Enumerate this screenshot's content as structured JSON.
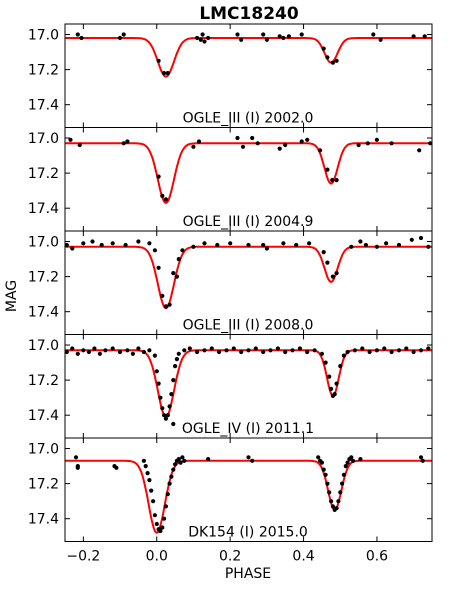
{
  "chart_data": {
    "type": "scatter",
    "title": "LMC18240",
    "xlabel": "PHASE",
    "ylabel": "MAG",
    "xlim": [
      -0.25,
      0.75
    ],
    "ylim": [
      17.53,
      16.94
    ],
    "y_inverted": true,
    "grid": false,
    "x_ticks": [
      -0.2,
      0.0,
      0.2,
      0.4,
      0.6
    ],
    "x_tick_labels": [
      "−0.2",
      "0.0",
      "0.2",
      "0.4",
      "0.6"
    ],
    "y_ticks": [
      17.0,
      17.2,
      17.4
    ],
    "y_tick_labels": [
      "17.0",
      "17.2",
      "17.4"
    ],
    "model_color": "#ff0000",
    "point_color": "#000000",
    "panels": [
      {
        "label": "OGLE_III (I) 2002.0",
        "model": {
          "base": 17.02,
          "primary": {
            "center": 0.025,
            "depth": 0.22,
            "width": 0.022
          },
          "secondary": {
            "center": 0.475,
            "depth": 0.14,
            "width": 0.018
          }
        },
        "points": [
          [
            -0.215,
            17.0
          ],
          [
            -0.205,
            17.02
          ],
          [
            -0.1,
            17.02
          ],
          [
            -0.09,
            17.0
          ],
          [
            0.005,
            17.15
          ],
          [
            0.02,
            17.22
          ],
          [
            0.03,
            17.22
          ],
          [
            0.12,
            17.03
          ],
          [
            0.11,
            17.02
          ],
          [
            0.125,
            17.0
          ],
          [
            0.13,
            17.04
          ],
          [
            0.14,
            17.02
          ],
          [
            0.22,
            17.0
          ],
          [
            0.23,
            17.03
          ],
          [
            0.29,
            17.0
          ],
          [
            0.3,
            17.03
          ],
          [
            0.335,
            17.01
          ],
          [
            0.345,
            17.02
          ],
          [
            0.36,
            17.01
          ],
          [
            0.395,
            17.0
          ],
          [
            0.455,
            17.08
          ],
          [
            0.465,
            17.13
          ],
          [
            0.48,
            17.16
          ],
          [
            0.49,
            17.15
          ],
          [
            0.59,
            17.0
          ],
          [
            0.61,
            17.03
          ],
          [
            0.7,
            17.01
          ],
          [
            0.73,
            17.01
          ]
        ]
      },
      {
        "label": "OGLE_III (I) 2004.9",
        "model": {
          "base": 17.03,
          "primary": {
            "center": 0.025,
            "depth": 0.34,
            "width": 0.022
          },
          "secondary": {
            "center": 0.475,
            "depth": 0.23,
            "width": 0.018
          }
        },
        "points": [
          [
            -0.235,
            17.01
          ],
          [
            -0.21,
            17.04
          ],
          [
            -0.09,
            17.03
          ],
          [
            -0.08,
            17.02
          ],
          [
            0.005,
            17.22
          ],
          [
            0.015,
            17.33
          ],
          [
            0.025,
            17.35
          ],
          [
            0.1,
            17.05
          ],
          [
            0.115,
            17.02
          ],
          [
            0.22,
            17.0
          ],
          [
            0.235,
            17.05
          ],
          [
            0.26,
            17.0
          ],
          [
            0.275,
            17.03
          ],
          [
            0.335,
            17.06
          ],
          [
            0.35,
            17.04
          ],
          [
            0.395,
            17.02
          ],
          [
            0.41,
            17.01
          ],
          [
            0.445,
            17.07
          ],
          [
            0.465,
            17.18
          ],
          [
            0.478,
            17.24
          ],
          [
            0.49,
            17.24
          ],
          [
            0.55,
            17.04
          ],
          [
            0.575,
            17.03
          ],
          [
            0.6,
            17.01
          ],
          [
            0.64,
            17.03
          ],
          [
            0.715,
            17.07
          ],
          [
            0.745,
            17.03
          ]
        ]
      },
      {
        "label": "OGLE_III (I) 2008.0",
        "model": {
          "base": 17.03,
          "primary": {
            "center": 0.025,
            "depth": 0.35,
            "width": 0.022
          },
          "secondary": {
            "center": 0.475,
            "depth": 0.2,
            "width": 0.018
          }
        },
        "points": [
          [
            -0.245,
            17.02
          ],
          [
            -0.23,
            17.04
          ],
          [
            -0.2,
            17.01
          ],
          [
            -0.175,
            17.0
          ],
          [
            -0.15,
            17.02
          ],
          [
            -0.12,
            17.01
          ],
          [
            -0.085,
            17.02
          ],
          [
            -0.05,
            17.0
          ],
          [
            -0.02,
            17.01
          ],
          [
            -0.005,
            17.05
          ],
          [
            0.005,
            17.15
          ],
          [
            0.015,
            17.31
          ],
          [
            0.025,
            17.37
          ],
          [
            0.035,
            17.36
          ],
          [
            0.045,
            17.18
          ],
          [
            0.055,
            17.2
          ],
          [
            0.06,
            17.1
          ],
          [
            0.07,
            17.05
          ],
          [
            0.1,
            17.03
          ],
          [
            0.13,
            17.01
          ],
          [
            0.165,
            17.02
          ],
          [
            0.2,
            17.01
          ],
          [
            0.25,
            17.02
          ],
          [
            0.29,
            17.02
          ],
          [
            0.3,
            17.04
          ],
          [
            0.345,
            17.01
          ],
          [
            0.38,
            17.02
          ],
          [
            0.415,
            17.01
          ],
          [
            0.455,
            17.06
          ],
          [
            0.465,
            17.12
          ],
          [
            0.48,
            17.2
          ],
          [
            0.49,
            17.18
          ],
          [
            0.53,
            17.03
          ],
          [
            0.555,
            17.0
          ],
          [
            0.57,
            17.02
          ],
          [
            0.6,
            17.03
          ],
          [
            0.625,
            17.01
          ],
          [
            0.66,
            17.02
          ],
          [
            0.695,
            16.99
          ],
          [
            0.72,
            16.98
          ],
          [
            0.74,
            17.03
          ]
        ]
      },
      {
        "label": "OGLE_IV (I) 2011.1",
        "model": {
          "base": 17.03,
          "primary": {
            "center": 0.025,
            "depth": 0.38,
            "width": 0.022
          },
          "secondary": {
            "center": 0.48,
            "depth": 0.26,
            "width": 0.016
          }
        },
        "points": [
          [
            -0.245,
            17.04
          ],
          [
            -0.23,
            17.02
          ],
          [
            -0.215,
            17.05
          ],
          [
            -0.2,
            17.03
          ],
          [
            -0.185,
            17.04
          ],
          [
            -0.17,
            17.02
          ],
          [
            -0.155,
            17.05
          ],
          [
            -0.14,
            17.03
          ],
          [
            -0.12,
            17.02
          ],
          [
            -0.1,
            17.04
          ],
          [
            -0.08,
            17.03
          ],
          [
            -0.065,
            17.05
          ],
          [
            -0.05,
            17.02
          ],
          [
            -0.035,
            17.04
          ],
          [
            -0.02,
            17.03
          ],
          [
            -0.005,
            17.06
          ],
          [
            0.0,
            17.15
          ],
          [
            0.005,
            17.22
          ],
          [
            0.01,
            17.3
          ],
          [
            0.015,
            17.36
          ],
          [
            0.02,
            17.4
          ],
          [
            0.025,
            17.42
          ],
          [
            0.03,
            17.4
          ],
          [
            0.035,
            17.35
          ],
          [
            0.04,
            17.28
          ],
          [
            0.045,
            17.2
          ],
          [
            0.05,
            17.12
          ],
          [
            0.055,
            17.08
          ],
          [
            0.06,
            17.05
          ],
          [
            0.075,
            17.03
          ],
          [
            0.09,
            17.02
          ],
          [
            0.11,
            17.04
          ],
          [
            0.13,
            17.03
          ],
          [
            0.15,
            17.02
          ],
          [
            0.17,
            17.04
          ],
          [
            0.19,
            17.03
          ],
          [
            0.21,
            17.02
          ],
          [
            0.23,
            17.04
          ],
          [
            0.25,
            17.03
          ],
          [
            0.27,
            17.02
          ],
          [
            0.29,
            17.04
          ],
          [
            0.31,
            17.03
          ],
          [
            0.33,
            17.02
          ],
          [
            0.35,
            17.04
          ],
          [
            0.37,
            17.03
          ],
          [
            0.39,
            17.02
          ],
          [
            0.41,
            17.04
          ],
          [
            0.43,
            17.03
          ],
          [
            0.45,
            17.05
          ],
          [
            0.46,
            17.1
          ],
          [
            0.47,
            17.18
          ],
          [
            0.475,
            17.25
          ],
          [
            0.48,
            17.29
          ],
          [
            0.485,
            17.28
          ],
          [
            0.49,
            17.22
          ],
          [
            0.5,
            17.12
          ],
          [
            0.51,
            17.06
          ],
          [
            0.52,
            17.04
          ],
          [
            0.54,
            17.03
          ],
          [
            0.56,
            17.02
          ],
          [
            0.58,
            17.04
          ],
          [
            0.6,
            17.03
          ],
          [
            0.62,
            17.02
          ],
          [
            0.64,
            17.04
          ],
          [
            0.66,
            17.03
          ],
          [
            0.68,
            17.02
          ],
          [
            0.7,
            17.04
          ],
          [
            0.72,
            17.03
          ],
          [
            0.74,
            17.02
          ],
          [
            0.045,
            17.45
          ]
        ]
      },
      {
        "label": "DK154 (I) 2015.0",
        "model": {
          "base": 17.07,
          "primary": {
            "center": 0.0,
            "depth": 0.41,
            "width": 0.022
          },
          "secondary": {
            "center": 0.485,
            "depth": 0.28,
            "width": 0.018
          }
        },
        "points": [
          [
            -0.22,
            17.05
          ],
          [
            -0.215,
            17.1
          ],
          [
            -0.215,
            17.11
          ],
          [
            -0.115,
            17.1
          ],
          [
            -0.11,
            17.11
          ],
          [
            -0.035,
            17.07
          ],
          [
            -0.03,
            17.1
          ],
          [
            -0.025,
            17.14
          ],
          [
            -0.02,
            17.18
          ],
          [
            -0.015,
            17.24
          ],
          [
            -0.01,
            17.3
          ],
          [
            -0.005,
            17.38
          ],
          [
            0.0,
            17.43
          ],
          [
            0.005,
            17.46
          ],
          [
            0.01,
            17.47
          ],
          [
            0.015,
            17.45
          ],
          [
            0.02,
            17.4
          ],
          [
            0.025,
            17.33
          ],
          [
            0.03,
            17.26
          ],
          [
            0.035,
            17.2
          ],
          [
            0.04,
            17.16
          ],
          [
            0.045,
            17.12
          ],
          [
            0.05,
            17.09
          ],
          [
            0.055,
            17.07
          ],
          [
            0.06,
            17.06
          ],
          [
            0.065,
            17.08
          ],
          [
            0.07,
            17.05
          ],
          [
            0.075,
            17.07
          ],
          [
            0.14,
            17.06
          ],
          [
            0.25,
            17.05
          ],
          [
            0.26,
            17.07
          ],
          [
            0.44,
            17.05
          ],
          [
            0.445,
            17.07
          ],
          [
            0.45,
            17.08
          ],
          [
            0.455,
            17.12
          ],
          [
            0.46,
            17.15
          ],
          [
            0.465,
            17.2
          ],
          [
            0.47,
            17.25
          ],
          [
            0.475,
            17.3
          ],
          [
            0.48,
            17.33
          ],
          [
            0.485,
            17.35
          ],
          [
            0.49,
            17.34
          ],
          [
            0.495,
            17.3
          ],
          [
            0.5,
            17.25
          ],
          [
            0.505,
            17.2
          ],
          [
            0.51,
            17.15
          ],
          [
            0.515,
            17.1
          ],
          [
            0.52,
            17.08
          ],
          [
            0.525,
            17.06
          ],
          [
            0.53,
            17.05
          ],
          [
            0.535,
            17.07
          ],
          [
            0.555,
            17.06
          ],
          [
            0.72,
            17.05
          ],
          [
            0.725,
            17.07
          ]
        ]
      }
    ]
  }
}
